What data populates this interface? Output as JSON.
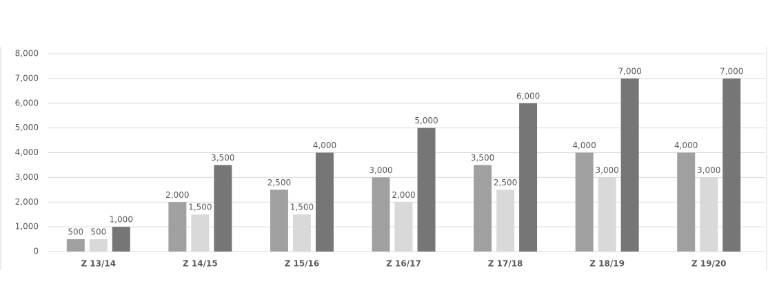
{
  "chart_data": {
    "type": "bar",
    "categories": [
      "Z 13/14",
      "Z 14/15",
      "Z 15/16",
      "Z 16/17",
      "Z 17/18",
      "Z 18/19",
      "Z 19/20"
    ],
    "series": [
      {
        "color": "#a0a0a0",
        "values": [
          500,
          2000,
          2500,
          3000,
          3500,
          4000,
          4000
        ],
        "value_labels": [
          "500",
          "2,000",
          "2,500",
          "3,000",
          "3,500",
          "4,000",
          "4,000"
        ]
      },
      {
        "color": "#d9d9d9",
        "values": [
          500,
          1500,
          1500,
          2000,
          2500,
          3000,
          3000
        ],
        "value_labels": [
          "500",
          "1,500",
          "1,500",
          "2,000",
          "2,500",
          "3,000",
          "3,000"
        ]
      },
      {
        "color": "#767676",
        "values": [
          1000,
          3500,
          4000,
          5000,
          6000,
          7000,
          7000
        ],
        "value_labels": [
          "1,000",
          "3,500",
          "4,000",
          "5,000",
          "6,000",
          "7,000",
          "7,000"
        ]
      }
    ],
    "ylim": [
      0,
      8000
    ],
    "yticks": [
      0,
      {
        "value": 1000,
        "label": "1,000"
      },
      {
        "value": 2000,
        "label": "2,000"
      },
      {
        "value": 3000,
        "label": "3,000"
      },
      {
        "value": 4000,
        "label": "4,000"
      },
      {
        "value": 5000,
        "label": "5,000"
      },
      {
        "value": 6000,
        "label": "6,000"
      },
      {
        "value": 7000,
        "label": "7,000"
      },
      {
        "value": 8000,
        "label": "8,000"
      }
    ],
    "grid": true
  }
}
